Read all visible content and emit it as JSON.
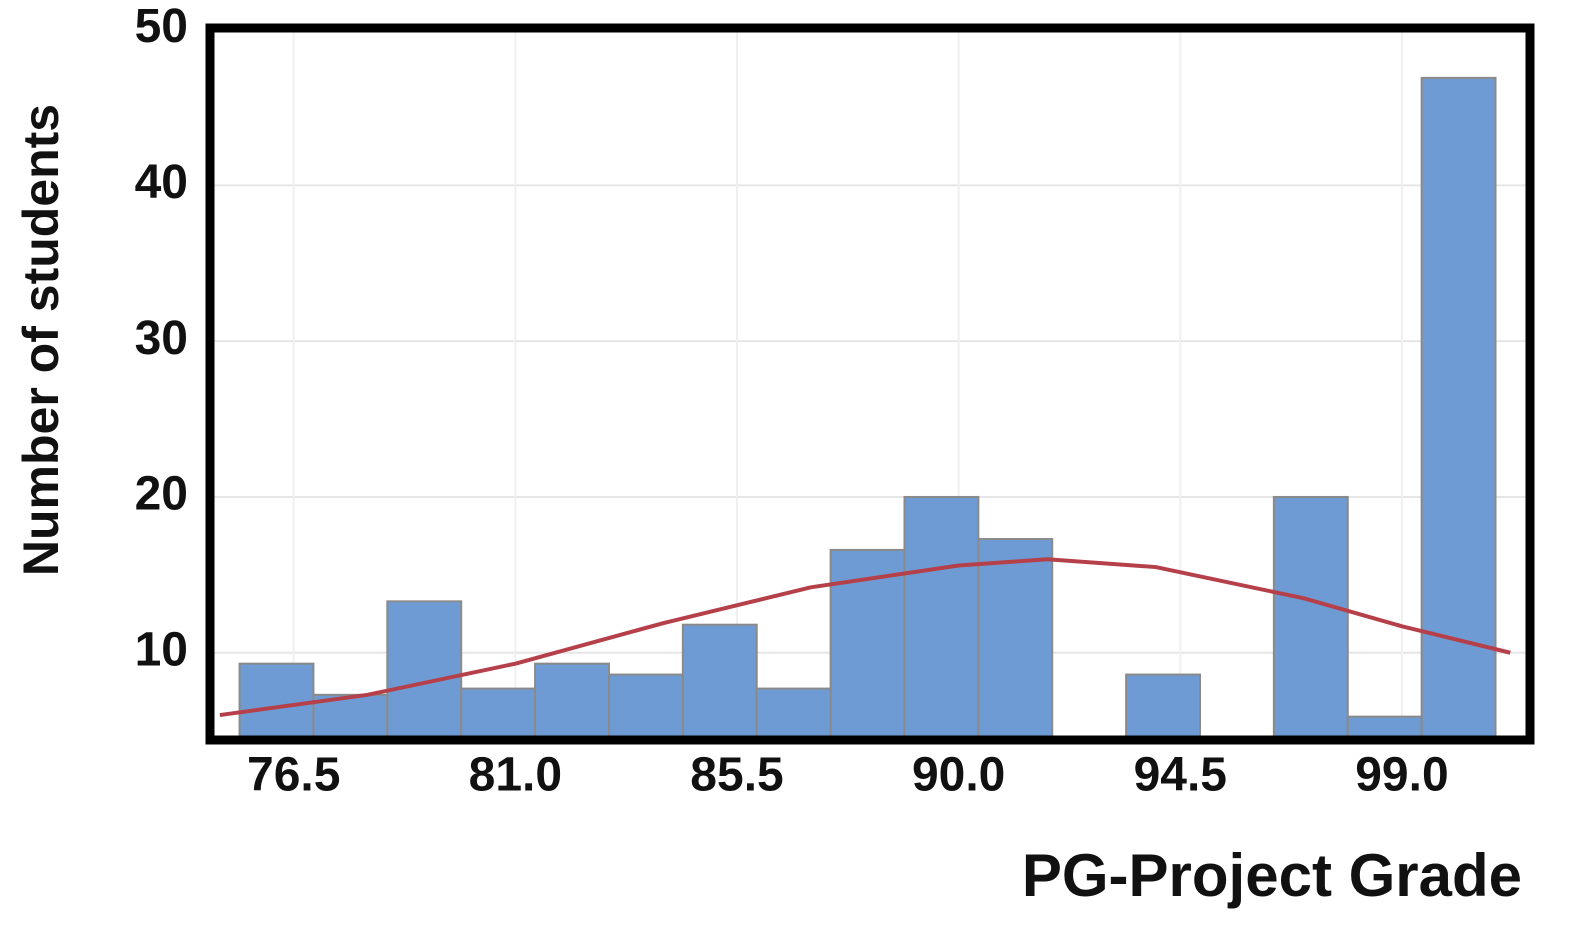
{
  "chart_data": {
    "type": "histogram",
    "x_label": "PG-Project Grade",
    "y_label": "Number of students",
    "bins": [
      75.4,
      76.9,
      78.4,
      79.9,
      81.4,
      82.9,
      84.4,
      85.9,
      87.4,
      88.9,
      90.4,
      91.9,
      93.4,
      94.9,
      96.4,
      97.9,
      99.4,
      100.9
    ],
    "values": [
      9.3,
      7.3,
      13.3,
      7.7,
      9.3,
      8.6,
      11.8,
      7.7,
      16.6,
      20,
      17.3,
      0,
      8.6,
      0,
      20,
      5.9,
      46.9
    ],
    "color": "#6f9bd4",
    "curve": {
      "color": "#b5404a",
      "x": [
        75.0,
        78,
        81,
        84,
        87,
        90,
        91.8,
        94,
        97,
        99,
        101.2
      ],
      "values": [
        6.0,
        7.3,
        9.3,
        11.9,
        14.2,
        15.6,
        16.0,
        15.5,
        13.5,
        11.7,
        10.0
      ]
    },
    "xlim": [
      74.8,
      101.6
    ],
    "ylim": [
      4.4,
      50.1
    ],
    "xticks": [
      {
        "value": 76.5,
        "label": "76.5"
      },
      {
        "value": 81.0,
        "label": "81.0"
      },
      {
        "value": 85.5,
        "label": "85.5"
      },
      {
        "value": 90.0,
        "label": "90.0"
      },
      {
        "value": 94.5,
        "label": "94.5"
      },
      {
        "value": 99.0,
        "label": "99.0"
      }
    ],
    "yticks": [
      10,
      20,
      30,
      40,
      50
    ],
    "grid": true
  }
}
